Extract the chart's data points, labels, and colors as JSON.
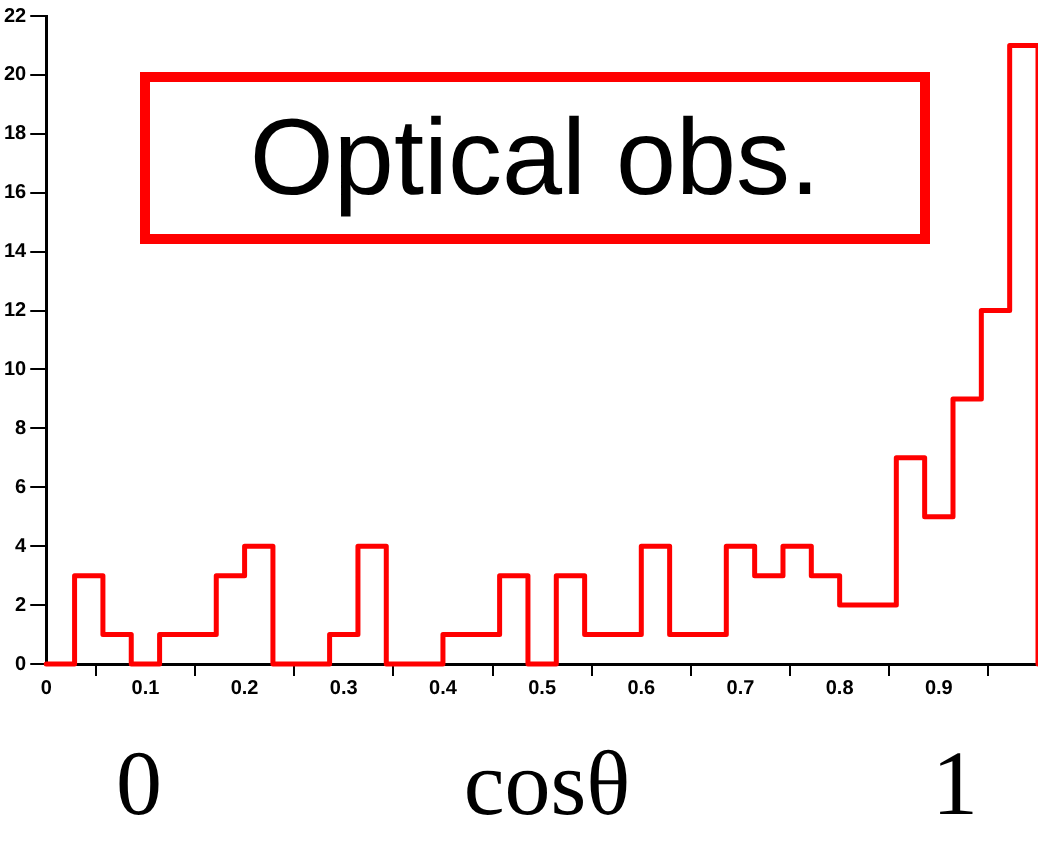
{
  "chart_data": {
    "type": "histogram",
    "xlabel": "cosθ",
    "annotations": [
      "Optical obs.",
      "0",
      "1"
    ],
    "bins": [
      0,
      0.02857,
      0.05714,
      0.08571,
      0.11429,
      0.14286,
      0.17143,
      0.2,
      0.22857,
      0.25714,
      0.28571,
      0.31429,
      0.34286,
      0.37143,
      0.4,
      0.42857,
      0.45714,
      0.48571,
      0.51429,
      0.54286,
      0.57143,
      0.6,
      0.62857,
      0.65714,
      0.68571,
      0.71429,
      0.74286,
      0.77143,
      0.8,
      0.82857,
      0.85714,
      0.88571,
      0.91429,
      0.94286,
      0.97143,
      1
    ],
    "values": [
      0,
      3,
      1,
      0,
      1,
      1,
      3,
      4,
      0,
      0,
      1,
      4,
      0,
      0,
      1,
      1,
      3,
      0,
      3,
      1,
      1,
      4,
      1,
      1,
      4,
      3,
      4,
      3,
      2,
      2,
      7,
      5,
      9,
      12,
      21
    ],
    "color": "#ff0000",
    "xlim": [
      0,
      1
    ],
    "xticks": [
      0,
      0.1,
      0.2,
      0.3,
      0.4,
      0.5,
      0.6,
      0.7,
      0.8,
      0.9
    ],
    "ylim": [
      0,
      22
    ],
    "yticks": [
      0,
      2,
      4,
      6,
      8,
      10,
      12,
      14,
      16,
      18,
      20,
      22
    ],
    "grid": false,
    "legend": false
  }
}
